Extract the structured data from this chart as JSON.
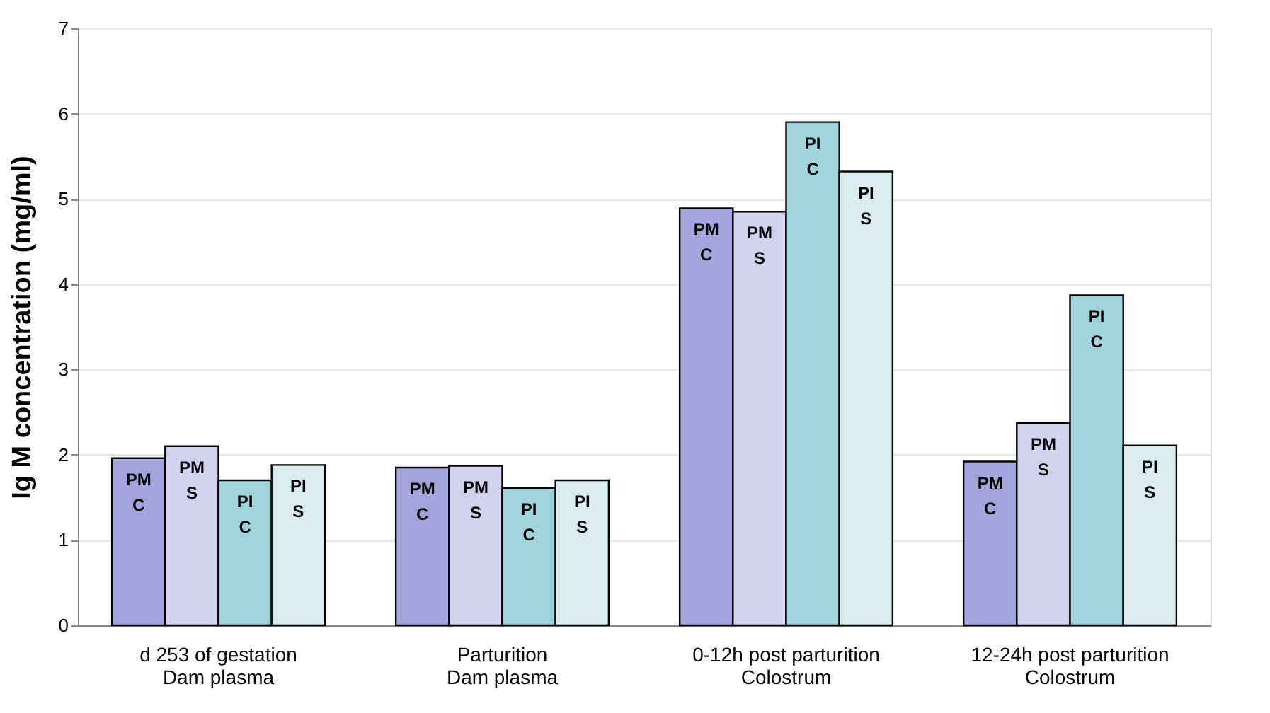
{
  "chart_data": {
    "type": "bar",
    "ylabel": "Ig M concentration (mg/ml)",
    "categories": [
      "d 253 of gestation\nDam plasma",
      "Parturition\nDam plasma",
      "0-12h post parturition\nColostrum",
      "12-24h post parturition\nColostrum"
    ],
    "series": [
      {
        "name": "PM\nC",
        "color": "#a4a4dc",
        "values": [
          1.96,
          1.85,
          4.89,
          1.92
        ]
      },
      {
        "name": "PM\nS",
        "color": "#d2d2ee",
        "values": [
          2.1,
          1.87,
          4.85,
          2.37
        ]
      },
      {
        "name": "PI\nC",
        "color": "#a0d4d8",
        "values": [
          1.7,
          1.61,
          5.9,
          3.87
        ]
      },
      {
        "name": "PI\nS",
        "color": "#daecee",
        "values": [
          1.88,
          1.7,
          5.32,
          2.11
        ]
      }
    ],
    "ylim": [
      0,
      7
    ],
    "yticks": [
      0,
      1,
      2,
      3,
      4,
      5,
      6,
      7
    ],
    "grid": "y",
    "legend": false
  }
}
